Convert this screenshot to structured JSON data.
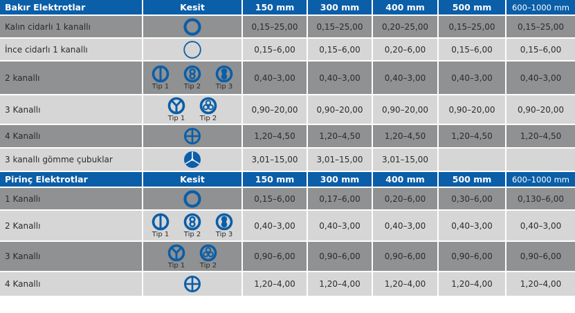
{
  "colors": {
    "header_bg": "#0b5ea8",
    "row_dark": "#8f9192",
    "row_light": "#d6d6d6",
    "icon": "#0b5ea8"
  },
  "sections": [
    {
      "title": "Bakır Elektrotlar",
      "kesit": "Kesit",
      "columns": [
        "150 mm",
        "300 mm",
        "400 mm",
        "500 mm",
        "600–1000 mm"
      ],
      "rows": [
        {
          "name": "Kalın cidarlı 1 kanallı",
          "icons": [
            {
              "type": "ring-thick-icon",
              "label": ""
            }
          ],
          "values": [
            "0,15–25,00",
            "0,15–25,00",
            "0,20–25,00",
            "0,15–25,00",
            "0,15–25,00"
          ]
        },
        {
          "name": "İnce cidarlı 1 kanallı",
          "icons": [
            {
              "type": "ring-thin-icon",
              "label": ""
            }
          ],
          "values": [
            "0,15–6,00",
            "0,15–6,00",
            "0,20–6,00",
            "0,15–6,00",
            "0,15–6,00"
          ]
        },
        {
          "name": "2 kanallı",
          "icons": [
            {
              "type": "split-vertical-icon",
              "label": "Tip 1"
            },
            {
              "type": "figure-eight-icon",
              "label": "Tip 2"
            },
            {
              "type": "double-lobe-icon",
              "label": "Tip 3"
            }
          ],
          "values": [
            "0,40–3,00",
            "0,40–3,00",
            "0,40–3,00",
            "0,40–3,00",
            "0,40–3,00"
          ]
        },
        {
          "name": "3 Kanallı",
          "icons": [
            {
              "type": "y-split-icon",
              "label": "Tip 1"
            },
            {
              "type": "three-circles-icon",
              "label": "Tip 2"
            }
          ],
          "values": [
            "0,90–20,00",
            "0,90–20,00",
            "0,90–20,00",
            "0,90–20,00",
            "0,90–20,00"
          ]
        },
        {
          "name": "4 Kanallı",
          "icons": [
            {
              "type": "cross-icon",
              "label": ""
            }
          ],
          "values": [
            "1,20–4,50",
            "1,20–4,50",
            "1,20–4,50",
            "1,20–4,50",
            "1,20–4,50"
          ]
        },
        {
          "name": "3 kanallı gömme çubuklar",
          "icons": [
            {
              "type": "trefoil-icon",
              "label": ""
            }
          ],
          "values": [
            "3,01–15,00",
            "3,01–15,00",
            "3,01–15,00",
            "",
            ""
          ]
        }
      ]
    },
    {
      "title": "Pirinç Elektrotlar",
      "kesit": "Kesit",
      "columns": [
        "150 mm",
        "300 mm",
        "400 mm",
        "500 mm",
        "600–1000 mm"
      ],
      "rows": [
        {
          "name": "1 Kanallı",
          "icons": [
            {
              "type": "ring-thick-icon",
              "label": ""
            }
          ],
          "values": [
            "0,15–6,00",
            "0,17–6,00",
            "0,20–6,00",
            "0,30–6,00",
            "0,130–6,00"
          ]
        },
        {
          "name": "2 Kanallı",
          "icons": [
            {
              "type": "split-vertical-icon",
              "label": "Tip 1"
            },
            {
              "type": "figure-eight-icon",
              "label": "Tip 2"
            },
            {
              "type": "double-lobe-icon",
              "label": "Tip 3"
            }
          ],
          "values": [
            "0,40–3,00",
            "0,40–3,00",
            "0,40–3,00",
            "0,40–3,00",
            "0,40–3,00"
          ]
        },
        {
          "name": "3 Kanallı",
          "icons": [
            {
              "type": "y-split-icon",
              "label": "Tip 1"
            },
            {
              "type": "three-circles-icon",
              "label": "Tip 2"
            }
          ],
          "values": [
            "0,90–6,00",
            "0,90–6,00",
            "0,90–6,00",
            "0,90–6,00",
            "0,90–6,00"
          ]
        },
        {
          "name": "4 Kanallı",
          "icons": [
            {
              "type": "cross-icon",
              "label": ""
            }
          ],
          "values": [
            "1,20–4,00",
            "1,20–4,00",
            "1,20–4,00",
            "1,20–4,00",
            "1,20–4,00"
          ]
        }
      ]
    }
  ]
}
